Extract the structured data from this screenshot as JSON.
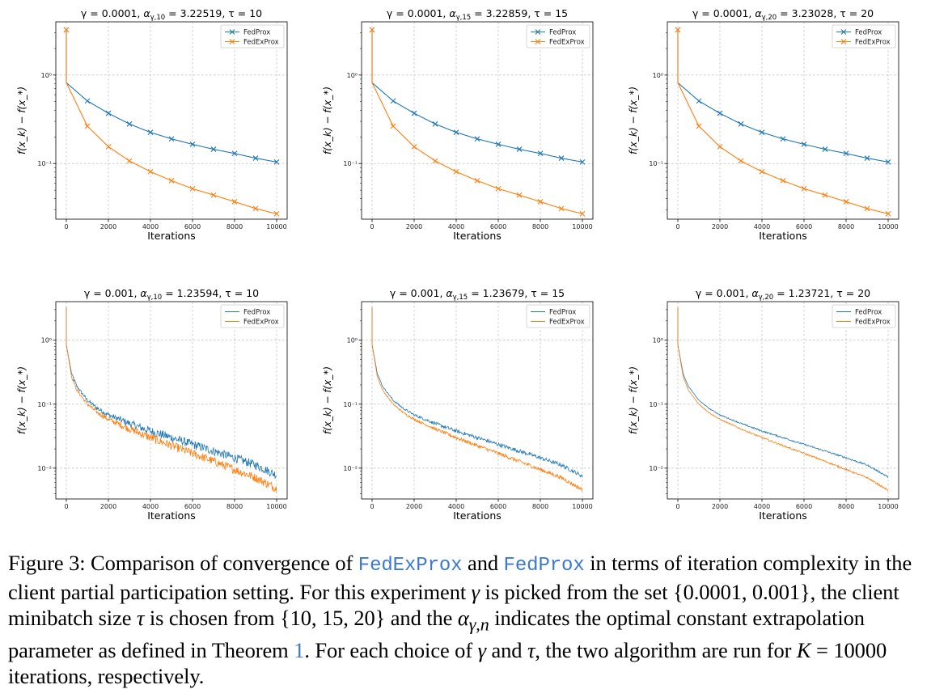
{
  "chart_data": [
    {
      "type": "line",
      "title_parts": {
        "gamma": "γ = 0.0001,",
        "alpha_sub": "γ,10",
        "alpha_val": "= 3.22519,",
        "tau": "τ = 10"
      },
      "xlabel": "Iterations",
      "ylabel": "f(x_k) − f(x_*)",
      "xlim": [
        -500,
        10500
      ],
      "ylim": [
        0.0235,
        4.0
      ],
      "yscale": "log",
      "xticks": [
        0,
        2000,
        4000,
        6000,
        8000,
        10000
      ],
      "yticks": [
        {
          "v": 1,
          "label": "10⁰"
        },
        {
          "v": 0.1,
          "label": "10⁻¹"
        }
      ],
      "grid": true,
      "legend": "top-right",
      "markers": true,
      "noise": 0,
      "series": [
        {
          "name": "FedProx",
          "color": "#1f77b4",
          "start": 3.25,
          "after": 0.82,
          "x": [
            0,
            1000,
            2000,
            3000,
            4000,
            5000,
            6000,
            7000,
            8000,
            9000,
            10000
          ],
          "y": [
            3.25,
            0.51,
            0.37,
            0.28,
            0.225,
            0.19,
            0.165,
            0.145,
            0.13,
            0.115,
            0.104
          ]
        },
        {
          "name": "FedExProx",
          "color": "#ff7f0e",
          "start": 3.25,
          "after": 0.82,
          "x": [
            0,
            1000,
            2000,
            3000,
            4000,
            5000,
            6000,
            7000,
            8000,
            9000,
            10000
          ],
          "y": [
            3.25,
            0.265,
            0.155,
            0.107,
            0.081,
            0.064,
            0.052,
            0.044,
            0.037,
            0.031,
            0.027
          ]
        }
      ]
    },
    {
      "type": "line",
      "title_parts": {
        "gamma": "γ = 0.0001,",
        "alpha_sub": "γ,15",
        "alpha_val": "= 3.22859,",
        "tau": "τ = 15"
      },
      "xlabel": "Iterations",
      "ylabel": "f(x_k) − f(x_*)",
      "xlim": [
        -500,
        10500
      ],
      "ylim": [
        0.0235,
        4.0
      ],
      "yscale": "log",
      "xticks": [
        0,
        2000,
        4000,
        6000,
        8000,
        10000
      ],
      "yticks": [
        {
          "v": 1,
          "label": "10⁰"
        },
        {
          "v": 0.1,
          "label": "10⁻¹"
        }
      ],
      "grid": true,
      "legend": "top-right",
      "markers": true,
      "noise": 0,
      "series": [
        {
          "name": "FedProx",
          "color": "#1f77b4",
          "start": 3.25,
          "after": 0.82,
          "x": [
            0,
            1000,
            2000,
            3000,
            4000,
            5000,
            6000,
            7000,
            8000,
            9000,
            10000
          ],
          "y": [
            3.25,
            0.51,
            0.37,
            0.28,
            0.225,
            0.19,
            0.165,
            0.145,
            0.13,
            0.115,
            0.104
          ]
        },
        {
          "name": "FedExProx",
          "color": "#ff7f0e",
          "start": 3.25,
          "after": 0.82,
          "x": [
            0,
            1000,
            2000,
            3000,
            4000,
            5000,
            6000,
            7000,
            8000,
            9000,
            10000
          ],
          "y": [
            3.25,
            0.265,
            0.155,
            0.107,
            0.081,
            0.064,
            0.052,
            0.044,
            0.037,
            0.031,
            0.027
          ]
        }
      ]
    },
    {
      "type": "line",
      "title_parts": {
        "gamma": "γ = 0.0001,",
        "alpha_sub": "γ,20",
        "alpha_val": "= 3.23028,",
        "tau": "τ = 20"
      },
      "xlabel": "Iterations",
      "ylabel": "f(x_k) − f(x_*)",
      "xlim": [
        -500,
        10500
      ],
      "ylim": [
        0.0235,
        4.0
      ],
      "yscale": "log",
      "xticks": [
        0,
        2000,
        4000,
        6000,
        8000,
        10000
      ],
      "yticks": [
        {
          "v": 1,
          "label": "10⁰"
        },
        {
          "v": 0.1,
          "label": "10⁻¹"
        }
      ],
      "grid": true,
      "legend": "top-right",
      "markers": true,
      "noise": 0,
      "series": [
        {
          "name": "FedProx",
          "color": "#1f77b4",
          "start": 3.25,
          "after": 0.82,
          "x": [
            0,
            1000,
            2000,
            3000,
            4000,
            5000,
            6000,
            7000,
            8000,
            9000,
            10000
          ],
          "y": [
            3.25,
            0.51,
            0.37,
            0.28,
            0.225,
            0.19,
            0.165,
            0.145,
            0.13,
            0.115,
            0.104
          ]
        },
        {
          "name": "FedExProx",
          "color": "#ff7f0e",
          "start": 3.25,
          "after": 0.82,
          "x": [
            0,
            1000,
            2000,
            3000,
            4000,
            5000,
            6000,
            7000,
            8000,
            9000,
            10000
          ],
          "y": [
            3.25,
            0.265,
            0.155,
            0.107,
            0.081,
            0.064,
            0.052,
            0.044,
            0.037,
            0.031,
            0.027
          ]
        }
      ]
    },
    {
      "type": "line",
      "title_parts": {
        "gamma": "γ = 0.001,",
        "alpha_sub": "γ,10",
        "alpha_val": "= 1.23594,",
        "tau": "τ = 10"
      },
      "xlabel": "Iterations",
      "ylabel": "f(x_k) − f(x_*)",
      "xlim": [
        -500,
        10500
      ],
      "ylim": [
        0.0033,
        4.0
      ],
      "yscale": "log",
      "xticks": [
        0,
        2000,
        4000,
        6000,
        8000,
        10000
      ],
      "yticks": [
        {
          "v": 1,
          "label": "10⁰"
        },
        {
          "v": 0.1,
          "label": "10⁻¹"
        },
        {
          "v": 0.01,
          "label": "10⁻²"
        }
      ],
      "grid": true,
      "legend": "top-right",
      "markers": false,
      "noise": 0.16,
      "series": [
        {
          "name": "FedProx",
          "color": "#1f77b4",
          "start": 3.25,
          "after": 0.85,
          "x": [
            0,
            250,
            500,
            1000,
            1500,
            2000,
            3000,
            4000,
            5000,
            6000,
            7000,
            8000,
            9000,
            10000
          ],
          "y": [
            0.85,
            0.3,
            0.19,
            0.115,
            0.085,
            0.068,
            0.05,
            0.038,
            0.03,
            0.0235,
            0.0185,
            0.0145,
            0.0112,
            0.0078
          ]
        },
        {
          "name": "FedExProx",
          "color": "#ff7f0e",
          "start": 3.25,
          "after": 0.85,
          "x": [
            0,
            250,
            500,
            1000,
            1500,
            2000,
            3000,
            4000,
            5000,
            6000,
            7000,
            8000,
            9000,
            10000
          ],
          "y": [
            0.85,
            0.27,
            0.165,
            0.1,
            0.073,
            0.058,
            0.041,
            0.03,
            0.0225,
            0.017,
            0.0128,
            0.0095,
            0.0071,
            0.0048
          ]
        }
      ]
    },
    {
      "type": "line",
      "title_parts": {
        "gamma": "γ = 0.001,",
        "alpha_sub": "γ,15",
        "alpha_val": "= 1.23679,",
        "tau": "τ = 15"
      },
      "xlabel": "Iterations",
      "ylabel": "f(x_k) − f(x_*)",
      "xlim": [
        -500,
        10500
      ],
      "ylim": [
        0.0033,
        4.0
      ],
      "yscale": "log",
      "xticks": [
        0,
        2000,
        4000,
        6000,
        8000,
        10000
      ],
      "yticks": [
        {
          "v": 1,
          "label": "10⁰"
        },
        {
          "v": 0.1,
          "label": "10⁻¹"
        },
        {
          "v": 0.01,
          "label": "10⁻²"
        }
      ],
      "grid": true,
      "legend": "top-right",
      "markers": false,
      "noise": 0.07,
      "series": [
        {
          "name": "FedProx",
          "color": "#1f77b4",
          "start": 3.25,
          "after": 0.85,
          "x": [
            0,
            250,
            500,
            1000,
            1500,
            2000,
            3000,
            4000,
            5000,
            6000,
            7000,
            8000,
            9000,
            10000
          ],
          "y": [
            0.85,
            0.3,
            0.19,
            0.115,
            0.085,
            0.068,
            0.05,
            0.038,
            0.03,
            0.0235,
            0.0185,
            0.0145,
            0.0112,
            0.0075
          ]
        },
        {
          "name": "FedExProx",
          "color": "#ff7f0e",
          "start": 3.25,
          "after": 0.85,
          "x": [
            0,
            250,
            500,
            1000,
            1500,
            2000,
            3000,
            4000,
            5000,
            6000,
            7000,
            8000,
            9000,
            10000
          ],
          "y": [
            0.85,
            0.27,
            0.165,
            0.1,
            0.073,
            0.058,
            0.041,
            0.03,
            0.0225,
            0.017,
            0.0128,
            0.0095,
            0.0071,
            0.0046
          ]
        }
      ]
    },
    {
      "type": "line",
      "title_parts": {
        "gamma": "γ = 0.001,",
        "alpha_sub": "γ,20",
        "alpha_val": "= 1.23721,",
        "tau": "τ = 20"
      },
      "xlabel": "Iterations",
      "ylabel": "f(x_k) − f(x_*)",
      "xlim": [
        -500,
        10500
      ],
      "ylim": [
        0.0033,
        4.0
      ],
      "yscale": "log",
      "xticks": [
        0,
        2000,
        4000,
        6000,
        8000,
        10000
      ],
      "yticks": [
        {
          "v": 1,
          "label": "10⁰"
        },
        {
          "v": 0.1,
          "label": "10⁻¹"
        },
        {
          "v": 0.01,
          "label": "10⁻²"
        }
      ],
      "grid": true,
      "legend": "top-right",
      "markers": false,
      "noise": 0.03,
      "series": [
        {
          "name": "FedProx",
          "color": "#1f77b4",
          "start": 3.25,
          "after": 0.85,
          "x": [
            0,
            250,
            500,
            1000,
            1500,
            2000,
            3000,
            4000,
            5000,
            6000,
            7000,
            8000,
            9000,
            10000
          ],
          "y": [
            0.85,
            0.3,
            0.19,
            0.115,
            0.085,
            0.068,
            0.05,
            0.038,
            0.03,
            0.0235,
            0.0185,
            0.0145,
            0.0112,
            0.0073
          ]
        },
        {
          "name": "FedExProx",
          "color": "#ff7f0e",
          "start": 3.25,
          "after": 0.85,
          "x": [
            0,
            250,
            500,
            1000,
            1500,
            2000,
            3000,
            4000,
            5000,
            6000,
            7000,
            8000,
            9000,
            10000
          ],
          "y": [
            0.85,
            0.27,
            0.165,
            0.1,
            0.073,
            0.058,
            0.041,
            0.03,
            0.0225,
            0.017,
            0.0128,
            0.0095,
            0.0071,
            0.0045
          ]
        }
      ]
    }
  ],
  "caption": {
    "prefix": "Figure 3: Comparison of convergence of",
    "algo1": "FedExProx",
    "and1": "and",
    "algo2": "FedProx",
    "t1": "in terms of iteration complexity in the client partial participation setting. For this experiment",
    "gamma": "γ",
    "t2": "is picked from the set {0.0001, 0.001}, the client minibatch size",
    "tau": "τ",
    "t3": "is chosen from {10, 15, 20} and the",
    "alpha": "α",
    "alpha_sub": "γ,n",
    "t4": "indicates the optimal constant extrapolation parameter as defined in Theorem",
    "ref": "1",
    "t5": ". For each choice of",
    "gamma2": "γ",
    "and2": "and",
    "tau2": "τ",
    "t6": ", the two algorithm are run for",
    "K": "K",
    "t7": "= 10000 iterations, respectively."
  }
}
